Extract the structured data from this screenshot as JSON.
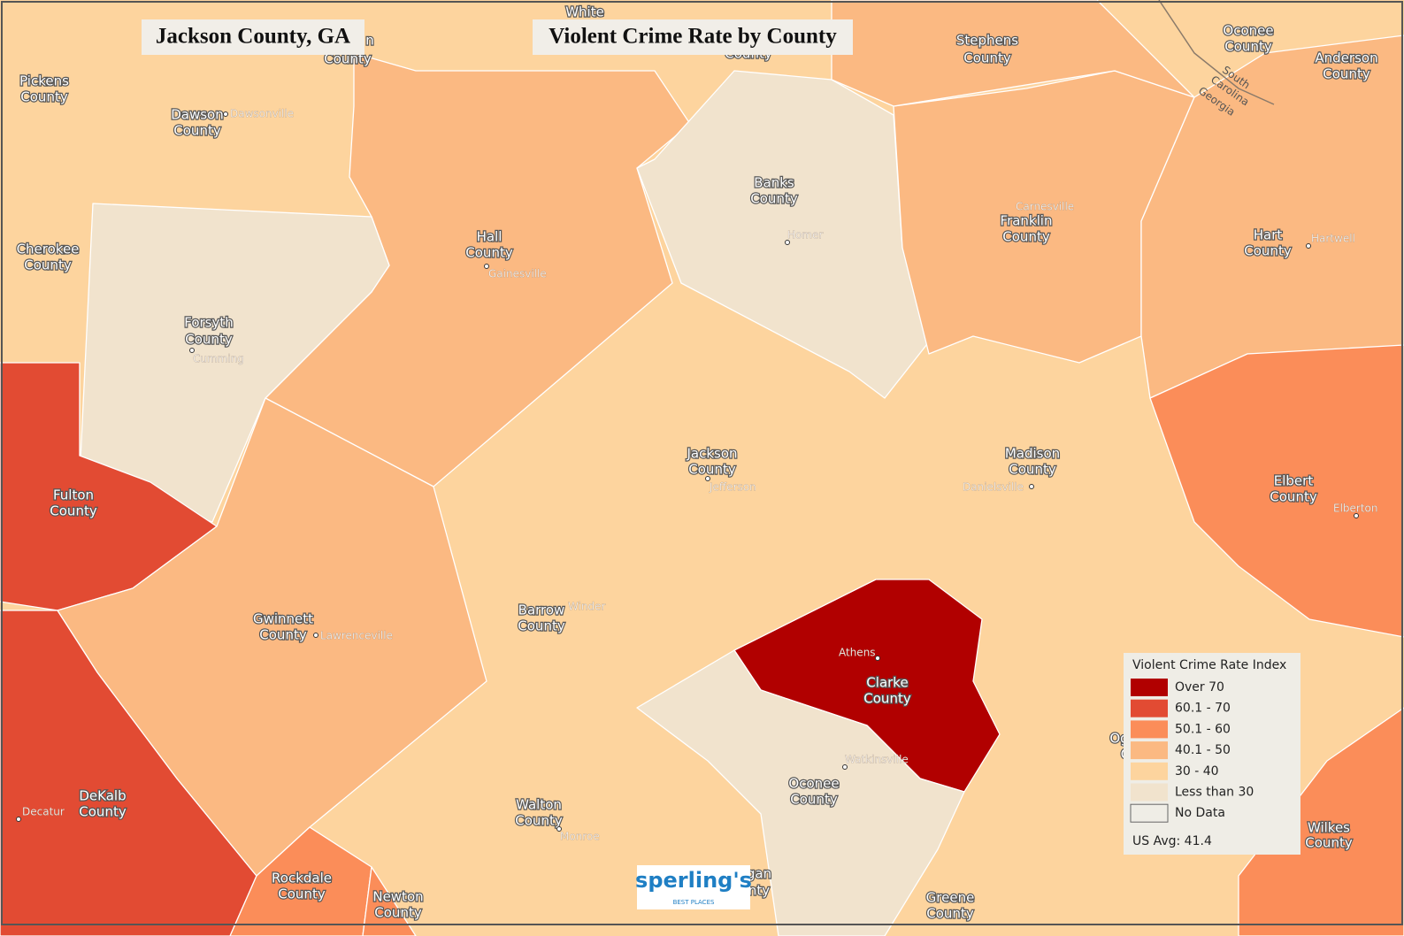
{
  "header": {
    "location": "Jackson County, GA",
    "title": "Violent Crime Rate by County"
  },
  "counties": [
    {
      "label": [
        "Hall",
        "County"
      ],
      "color": "#fbb982"
    },
    {
      "label": [
        "Forsyth",
        "County"
      ],
      "color": "#f1e3cd"
    },
    {
      "label": [
        "Fulton",
        "County"
      ],
      "color": "#e24b33"
    },
    {
      "label": [
        "DeKalb",
        "County"
      ],
      "color": "#e24b33"
    },
    {
      "label": [
        "Gwinnett",
        "County"
      ],
      "color": "#fbb982"
    },
    {
      "label": [
        "Banks",
        "County"
      ],
      "color": "#f1e3cd"
    },
    {
      "label": [
        "Clarke",
        "County"
      ],
      "color": "#b10000"
    },
    {
      "label": [
        "Oconee",
        "County"
      ],
      "color": "#f1e3cd"
    },
    {
      "label": [
        "Franklin",
        "County"
      ],
      "color": "#fbb982"
    },
    {
      "label": [
        "Stephens",
        "County"
      ],
      "color": "#fbb982"
    },
    {
      "label": [
        "Hart",
        "County"
      ],
      "color": "#fbb982"
    },
    {
      "label": [
        "Elbert",
        "County"
      ],
      "color": "#fb8d59"
    },
    {
      "label": [
        "Wilkes",
        "County"
      ],
      "color": "#fb8d59"
    },
    {
      "label": [
        "Rockdale",
        "County"
      ],
      "color": "#fb8d59"
    },
    {
      "label": [
        "Newton",
        "County"
      ],
      "color": "#fb8d59"
    },
    {
      "label": [
        "Jackson",
        "County"
      ]
    },
    {
      "label": [
        "Madison",
        "County"
      ]
    },
    {
      "label": [
        "Barrow",
        "County"
      ]
    },
    {
      "label": [
        "Walton",
        "County"
      ]
    },
    {
      "label": [
        "Pickens",
        "County"
      ]
    },
    {
      "label": [
        "Cherokee",
        "County"
      ]
    },
    {
      "label": [
        "Dawson",
        "County"
      ]
    },
    {
      "label": [
        "Greene",
        "County"
      ]
    },
    {
      "label": [
        "Oconee",
        "County"
      ]
    },
    {
      "label": [
        "Anderson",
        "County"
      ]
    },
    {
      "label": [
        "White"
      ]
    },
    {
      "label": [
        "n",
        "County"
      ]
    },
    {
      "label": [
        "County"
      ]
    },
    {
      "label": [
        "gan",
        "nty"
      ]
    },
    {
      "label": [
        "Og",
        "C"
      ]
    }
  ],
  "cities": [
    "Dawsonville",
    "Gainesville",
    "Cumming",
    "Homer",
    "Carnesville",
    "Hartwell",
    "Jefferson",
    "Danielsville",
    "Elberton",
    "Winder",
    "Lawrenceville",
    "Athens",
    "Watkinsville",
    "Decatur",
    "Monroe"
  ],
  "states": {
    "upper": [
      "South",
      "Carolina"
    ],
    "lower": "Georgia"
  },
  "legend": {
    "title": "Violent Crime Rate Index",
    "items": [
      {
        "label": "Over 70",
        "color": "#b10000"
      },
      {
        "label": "60.1 - 70",
        "color": "#e24b33"
      },
      {
        "label": "50.1 - 60",
        "color": "#fb8d59"
      },
      {
        "label": "40.1 - 50",
        "color": "#fbb982"
      },
      {
        "label": "30 - 40",
        "color": "#fdd49e"
      },
      {
        "label": "Less than 30",
        "color": "#f1e3cd"
      },
      {
        "label": "No Data",
        "color": "#efede6"
      }
    ],
    "us_avg": "US Avg: 41.4"
  },
  "logo": {
    "name": "sperling's",
    "tagline": "BEST PLACES"
  }
}
